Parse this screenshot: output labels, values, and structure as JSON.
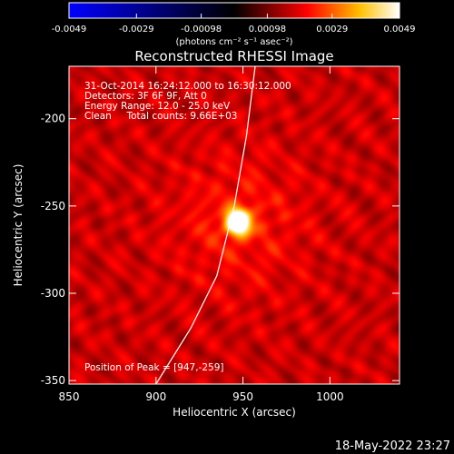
{
  "chart_data": {
    "type": "heatmap",
    "title": "Reconstructed RHESSI Image",
    "xlabel": "Heliocentric X (arcsec)",
    "ylabel": "Heliocentric Y (arcsec)",
    "xlim": [
      850,
      1040
    ],
    "ylim": [
      -352,
      -170
    ],
    "x_ticks": [
      850,
      900,
      950,
      1000
    ],
    "y_ticks": [
      -200,
      -250,
      -300,
      -350
    ],
    "colorbar": {
      "range": [
        -0.0049,
        0.0049
      ],
      "ticks": [
        "-0.0049",
        "-0.0029",
        "-0.00098",
        "0.00098",
        "0.0029",
        "0.0049"
      ],
      "tick_values": [
        -0.0049,
        -0.0029,
        -0.00098,
        0.00098,
        0.0029,
        0.0049
      ],
      "label": "(photons cm⁻² s⁻¹ asec⁻²)",
      "colors": [
        "#0000ff",
        "#000000",
        "#ff0000",
        "#ffff00",
        "#ffffff"
      ]
    },
    "source": {
      "peak": [
        947,
        -259
      ],
      "sigma_arcsec": 5,
      "peak_value": 0.0049
    },
    "limb_curve": [
      [
        900,
        -352
      ],
      [
        920,
        -320
      ],
      [
        935,
        -290
      ],
      [
        945,
        -250
      ],
      [
        952,
        -210
      ],
      [
        957,
        -170
      ]
    ]
  },
  "annotations": {
    "line1": "31-Oct-2014 16:24:12.000 to 16:30:12.000",
    "line2": "Detectors: 3F 6F 9F, Att 0",
    "line3": "Energy Range: 12.0 - 25.0 keV",
    "line4": "Clean     Total counts: 9.66E+03",
    "peak_label": "Position of Peak = [947,-259]"
  },
  "timestamp": "18-May-2022 23:27"
}
